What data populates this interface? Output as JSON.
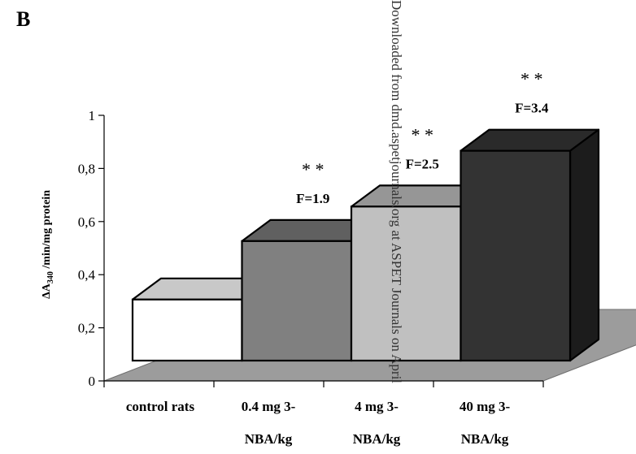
{
  "panel_label": "B",
  "watermark": "Downloaded from dmd.aspetjournals.org at ASPET Journals on April",
  "chart_data": {
    "type": "bar",
    "style": "3d",
    "title": "",
    "ylabel_prefix": "ΔA",
    "ylabel_sub": "340",
    "ylabel_suffix": " /min/mg protein",
    "ylim": [
      0,
      1
    ],
    "yticks": [
      "0",
      "0,2",
      "0,4",
      "0,6",
      "0,8",
      "1"
    ],
    "ytick_values": [
      0,
      0.2,
      0.4,
      0.6,
      0.8,
      1
    ],
    "grid": false,
    "categories": [
      {
        "line1": "control rats",
        "line2": ""
      },
      {
        "line1": "0.4 mg 3-",
        "line2": "NBA/kg"
      },
      {
        "line1": "4 mg 3-",
        "line2": "NBA/kg"
      },
      {
        "line1": "40 mg 3-",
        "line2": "NBA/kg"
      }
    ],
    "values": [
      0.23,
      0.45,
      0.58,
      0.79
    ],
    "annotations": [
      {
        "stars": "",
        "fold": ""
      },
      {
        "stars": "* *",
        "fold": "F=1.9"
      },
      {
        "stars": "* *",
        "fold": "F=2.5"
      },
      {
        "stars": "* *",
        "fold": "F=3.4"
      }
    ],
    "colors": {
      "front": [
        "#ffffff",
        "#808080",
        "#c0c0c0",
        "#333333"
      ],
      "top": [
        "#c8c8c8",
        "#606060",
        "#969696",
        "#2a2a2a"
      ],
      "side": [
        "#a8a8a8",
        "#5a5a5a",
        "#8c8c8c",
        "#1c1c1c"
      ],
      "floor": "#9c9c9c",
      "edge": "#000000"
    }
  }
}
